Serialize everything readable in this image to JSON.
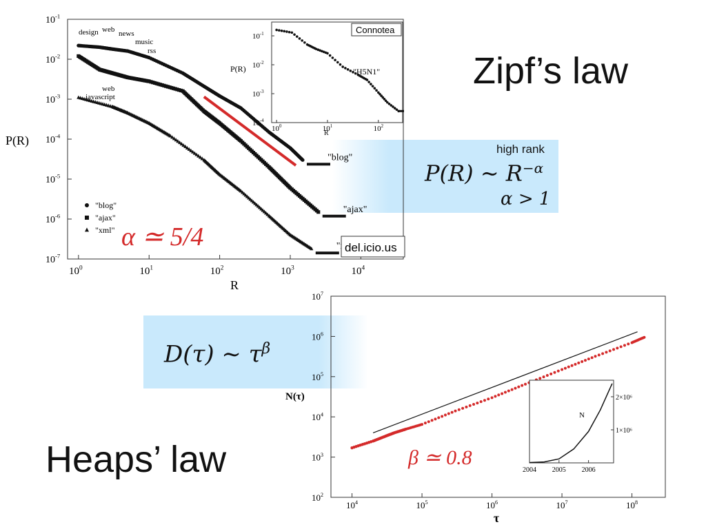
{
  "slide": {
    "zipf_title": "Zipf’s law",
    "heaps_title": "Heaps’ law",
    "high_rank": "high rank",
    "zipf_formula": {
      "lhs": "P(R)",
      "sim": "∼",
      "base": "R",
      "exp": "−α"
    },
    "zipf_condition": "α > 1",
    "heaps_formula": {
      "lhs": "D(τ)",
      "sim": "∼",
      "base": "τ",
      "exp": "β"
    }
  },
  "chart_data": [
    {
      "id": "delicious",
      "type": "scatter",
      "scale": "log-log",
      "xlabel": "R",
      "ylabel": "P(R)",
      "xlim": [
        0.7,
        40000
      ],
      "ylim": [
        1e-07,
        0.1
      ],
      "x_ticks": [
        "10^0",
        "10^1",
        "10^2",
        "10^3",
        "10^4"
      ],
      "y_ticks": [
        "10^-1",
        "10^-2",
        "10^-3",
        "10^-4",
        "10^-5",
        "10^-6",
        "10^-7"
      ],
      "watermark": "del.icio.us",
      "legend": {
        "position": "bottom-left",
        "entries": [
          "\"blog\"",
          "\"ajax\"",
          "\"xml\""
        ]
      },
      "fit_line": {
        "color": "#d42a2a",
        "x": [
          60,
          1200
        ],
        "y": [
          0.00115,
          2.2e-05
        ]
      },
      "annotation": "α ≃ 5/4",
      "word_labels": [
        "design",
        "web",
        "news",
        "music",
        "rss",
        "web",
        "javascript"
      ],
      "series": [
        {
          "name": "\"blog\"",
          "marker": "circle",
          "x": [
            1,
            2,
            3,
            5,
            10,
            30,
            60,
            100,
            200,
            500,
            1000,
            1500
          ],
          "y": [
            0.022,
            0.02,
            0.018,
            0.016,
            0.011,
            0.0045,
            0.0021,
            0.0012,
            0.0006,
            0.00015,
            6e-05,
            3e-05
          ],
          "tail_label": "\"blog\""
        },
        {
          "name": "\"ajax\"",
          "marker": "square",
          "x": [
            1,
            2,
            3,
            5,
            10,
            30,
            60,
            100,
            200,
            500,
            1000,
            2500
          ],
          "y": [
            0.012,
            0.0055,
            0.0045,
            0.0035,
            0.0028,
            0.0016,
            0.0005,
            0.00025,
            9e-05,
            2e-05,
            6e-06,
            1.5e-06
          ],
          "tail_label": "\"ajax\""
        },
        {
          "name": "\"xml\"",
          "marker": "triangle",
          "x": [
            1,
            3,
            5,
            10,
            20,
            60,
            100,
            200,
            500,
            1000,
            2000
          ],
          "y": [
            0.0011,
            0.00065,
            0.00045,
            0.00025,
            0.00012,
            3e-05,
            1.3e-05,
            5e-06,
            1.2e-06,
            4e-07,
            1.8e-07
          ],
          "tail_label": "\"xml\""
        }
      ]
    },
    {
      "id": "connotea",
      "type": "scatter",
      "scale": "log-log",
      "xlabel": "R",
      "ylabel": "P(R)",
      "xlim": [
        0.8,
        300
      ],
      "ylim": [
        0.0001,
        0.3
      ],
      "x_ticks": [
        "10^0",
        "10^1",
        "10^2"
      ],
      "y_ticks": [
        "10^-1",
        "10^-2",
        "10^-3",
        "10^-4"
      ],
      "watermark": "Connotea",
      "series_label": "\"H5N1\"",
      "series": [
        {
          "name": "\"H5N1\"",
          "marker": "circle",
          "x": [
            1,
            2,
            4,
            6,
            10,
            20,
            40,
            60,
            100,
            150,
            250
          ],
          "y": [
            0.16,
            0.13,
            0.05,
            0.035,
            0.025,
            0.0085,
            0.0045,
            0.003,
            0.0011,
            0.0005,
            0.00025
          ]
        }
      ]
    },
    {
      "id": "heaps",
      "type": "scatter",
      "scale": "log-log",
      "xlabel": "τ",
      "ylabel": "N(τ)",
      "xlim": [
        5000,
        300000000
      ],
      "ylim": [
        100,
        10000000
      ],
      "x_ticks": [
        "10^4",
        "10^5",
        "10^6",
        "10^7",
        "10^8"
      ],
      "y_ticks": [
        "10^2",
        "10^3",
        "10^4",
        "10^5",
        "10^6",
        "10^7"
      ],
      "annotation": "β ≃ 0.8",
      "series": [
        {
          "name": "data",
          "color": "#d42a2a",
          "x": [
            10000,
            20000,
            30000,
            40000,
            60000,
            100000,
            300000,
            1000000,
            3000000,
            10000000,
            30000000,
            100000000,
            150000000
          ],
          "y": [
            1700,
            2500,
            3300,
            4000,
            5000,
            6500,
            14000,
            30000,
            65000,
            150000,
            320000,
            700000,
            950000
          ]
        },
        {
          "name": "fit",
          "color": "#111111",
          "x": [
            20000,
            120000000
          ],
          "y": [
            4000,
            1300000
          ]
        }
      ],
      "inset": {
        "xlabel_ticks": [
          "2004",
          "2005",
          "2006"
        ],
        "y_ticks": [
          "1×10⁶",
          "2×10⁶"
        ],
        "label": "N",
        "x": [
          2004.0,
          2004.5,
          2005.0,
          2005.5,
          2006.0,
          2006.4,
          2006.8
        ],
        "y": [
          10000,
          30000,
          120000,
          420000,
          950000,
          1600000,
          2400000
        ],
        "xlim": [
          2004.0,
          2006.85
        ],
        "ylim": [
          0,
          2500000
        ]
      }
    }
  ]
}
